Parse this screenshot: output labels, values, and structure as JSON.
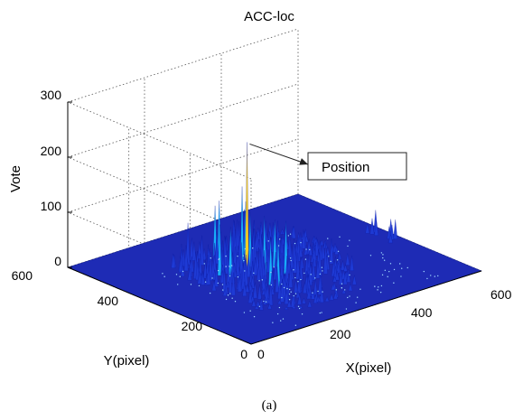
{
  "chart_data": {
    "type": "surface",
    "title": "ACC-loc",
    "xlabel": "X(pixel)",
    "ylabel": "Y(pixel)",
    "zlabel": "Vote",
    "xlim": [
      0,
      600
    ],
    "ylim": [
      0,
      600
    ],
    "zlim": [
      0,
      300
    ],
    "x_ticks": [
      "0",
      "200",
      "400",
      "600"
    ],
    "y_ticks": [
      "0",
      "200",
      "400",
      "600"
    ],
    "z_ticks": [
      "0",
      "100",
      "200",
      "300"
    ],
    "grid": true,
    "colormap": "jet",
    "annotation": {
      "text": "Position",
      "target": {
        "x": 260,
        "y": 340,
        "z": 230
      }
    },
    "caption": "(a)"
  },
  "colors": {
    "floor": "#1e2bb5",
    "low": "#1f3bd6",
    "mid": "#19b8ff",
    "high": "#ffd21a",
    "grid": "#555555"
  }
}
